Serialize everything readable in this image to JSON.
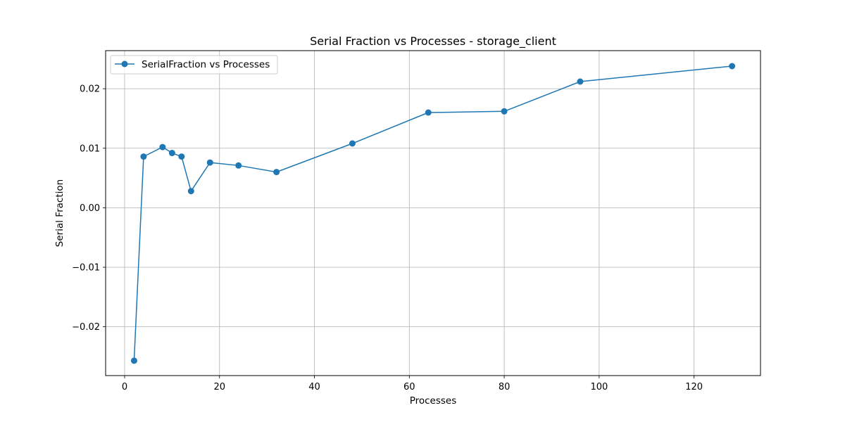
{
  "chart_data": {
    "type": "line",
    "title": "Serial Fraction vs Processes  - storage_client",
    "xlabel": "Processes",
    "ylabel": "Serial Fraction",
    "xlim": [
      -4,
      134
    ],
    "ylim": [
      -0.0282,
      0.0264
    ],
    "x_ticks": [
      0,
      20,
      40,
      60,
      80,
      100,
      120
    ],
    "x_tick_labels": [
      "0",
      "20",
      "40",
      "60",
      "80",
      "100",
      "120"
    ],
    "y_ticks": [
      -0.02,
      -0.01,
      0.0,
      0.01,
      0.02
    ],
    "y_tick_labels": [
      "−0.02",
      "−0.01",
      "0.00",
      "0.01",
      "0.02"
    ],
    "grid": true,
    "legend_position": "top-left",
    "colors": {
      "series": "#1f77b4",
      "grid": "#b0b0b0",
      "axes": "#000000"
    },
    "series": [
      {
        "name": "SerialFraction vs Processes",
        "marker": "circle",
        "x": [
          2,
          4,
          8,
          10,
          12,
          14,
          18,
          24,
          32,
          48,
          64,
          80,
          96,
          128
        ],
        "y": [
          -0.0257,
          0.0086,
          0.0102,
          0.0092,
          0.0086,
          0.0028,
          0.0076,
          0.0071,
          0.006,
          0.0108,
          0.016,
          0.0162,
          0.0212,
          0.0238
        ]
      }
    ]
  }
}
